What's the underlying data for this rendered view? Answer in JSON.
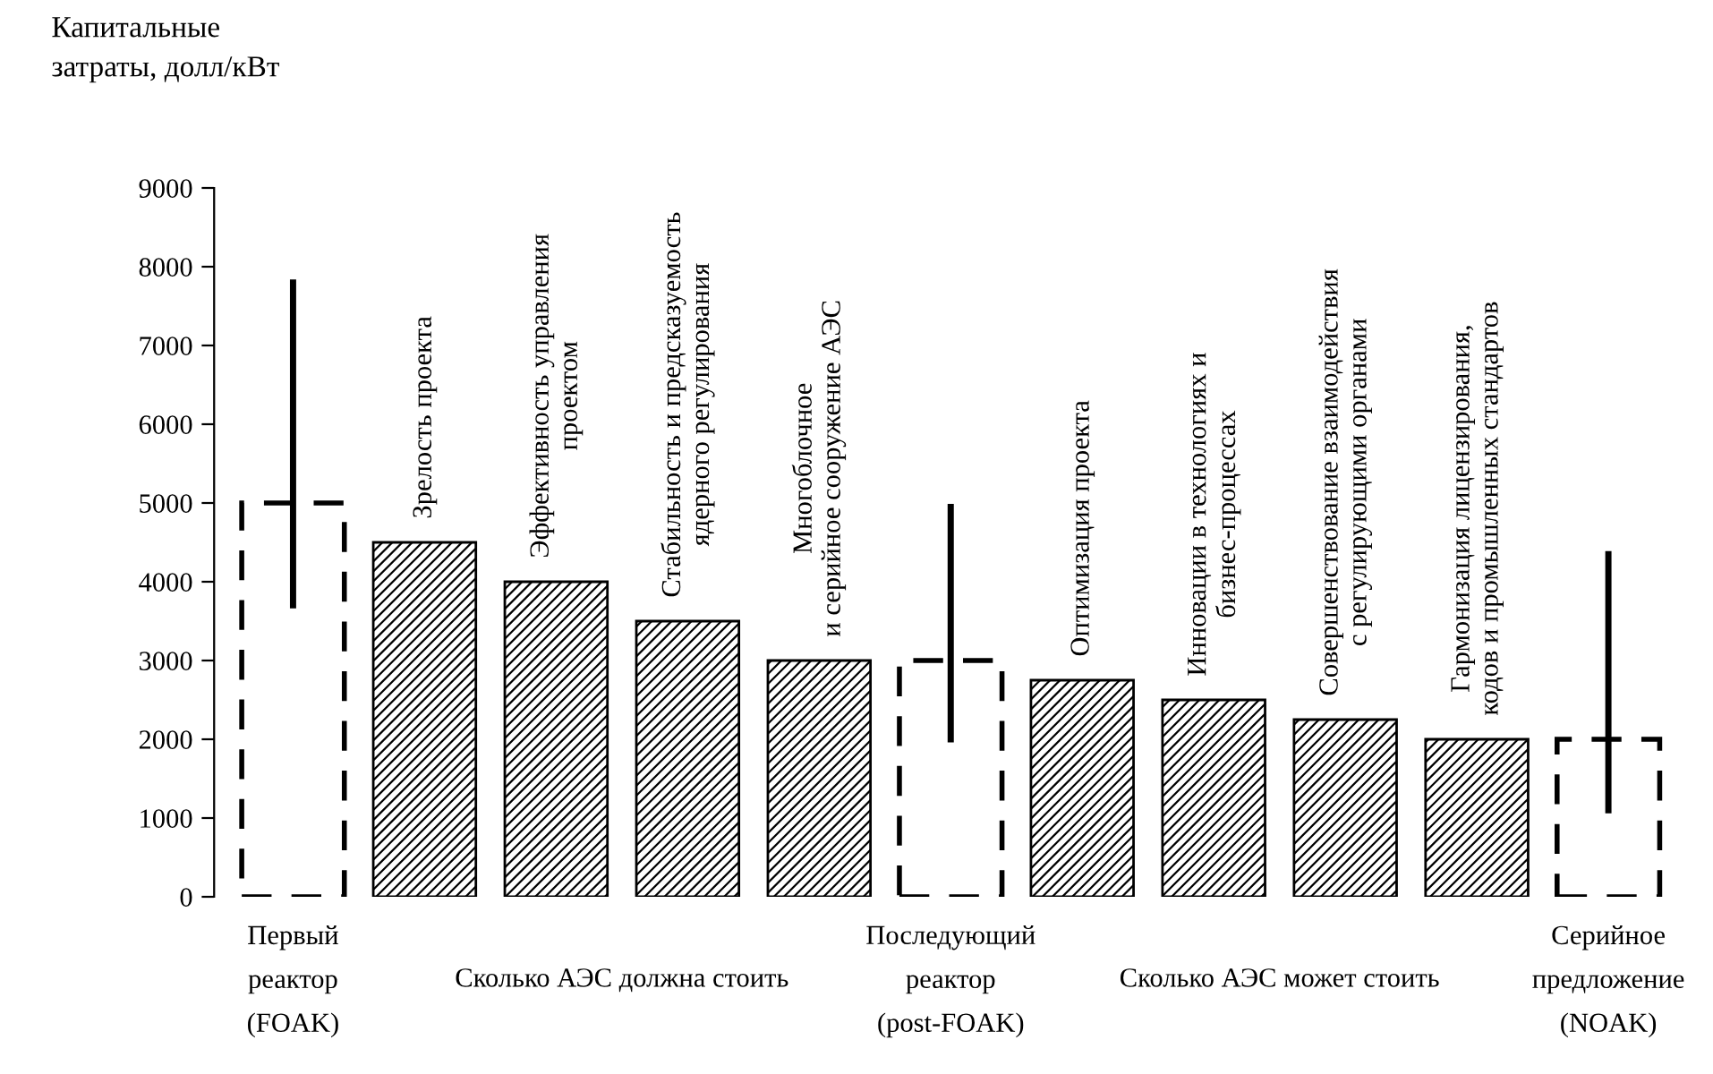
{
  "chart_data": {
    "type": "bar",
    "ylabel": "Капитальные\nзатраты, долл/кВт",
    "categories": [
      "Первый\nреактор\n(FOAK)",
      "Зрелость проекта",
      "Эффективность управления\nпроектом",
      "Стабильность и предсказуемость\nядерного регулирования",
      "Многоблочное\nи серийное сооружение АЭС",
      "Последующий\nреактор\n(post-FOAK)",
      "Оптимизация проекта",
      "Инновации в технологиях и\nбизнес-процессах",
      "Совершенствование взаимодействия\nс регулирующими органами",
      "Гармонизация лицензирования,\nкодов и промышленных стандартов",
      "Серийное\nпредложение\n(NOAK)"
    ],
    "series": [
      {
        "color": "#000000",
        "line_style": "dashed",
        "values": [
          5000,
          null,
          null,
          null,
          null,
          3000,
          null,
          null,
          null,
          null,
          2000
        ],
        "errors": [
          [
            3700,
            7800
          ],
          null,
          null,
          null,
          null,
          [
            2000,
            4950
          ],
          null,
          null,
          null,
          null,
          [
            1100,
            4350
          ]
        ]
      },
      {
        "color": "#000000",
        "line_style": "solid",
        "values": [
          null,
          4500,
          4000,
          3500,
          3000,
          null,
          2750,
          2500,
          2250,
          2000,
          null
        ]
      }
    ],
    "annotations": [
      "Сколько АЭС должна стоить",
      "Сколько АЭС может стоить"
    ],
    "ylim": [
      0,
      9000
    ],
    "yticks": [
      0,
      1000,
      2000,
      3000,
      4000,
      5000,
      6000,
      7000,
      8000,
      9000
    ],
    "grid": false,
    "legend": false
  }
}
